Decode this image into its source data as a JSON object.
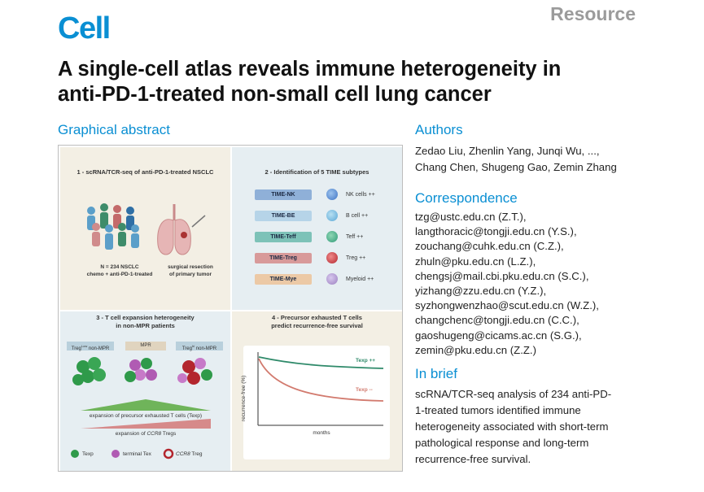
{
  "header": {
    "journal": "Cell",
    "article_type": "Resource",
    "title_line1": "A single-cell atlas reveals immune heterogeneity in",
    "title_line2": "anti-PD-1-treated non-small cell lung cancer"
  },
  "sections": {
    "graphical_abstract": "Graphical abstract",
    "authors": "Authors",
    "correspondence": "Correspondence",
    "in_brief": "In brief"
  },
  "authors": {
    "line1": "Zedao Liu, Zhenlin Yang, Junqi Wu, ...,",
    "line2": "Chang Chen, Shugeng Gao, Zemin Zhang"
  },
  "correspondence": [
    "tzg@ustc.edu.cn (Z.T.),",
    "langthoracic@tongji.edu.cn (Y.S.),",
    "zouchang@cuhk.edu.cn (C.Z.),",
    "zhuln@pku.edu.cn (L.Z.),",
    "chengsj@mail.cbi.pku.edu.cn (S.C.),",
    "yizhang@zzu.edu.cn (Y.Z.),",
    "syzhongwenzhao@scut.edu.cn (W.Z.),",
    "changchenc@tongji.edu.cn (C.C.),",
    "gaoshugeng@cicams.ac.cn (S.G.),",
    "zemin@pku.edu.cn (Z.Z.)"
  ],
  "in_brief": {
    "line1": "scRNA/TCR-seq analysis of 234 anti-PD-",
    "line2": "1-treated tumors identified immune",
    "line3": "heterogeneity associated with short-term",
    "line4": "pathological response and long-term",
    "line5": "recurrence-free survival."
  },
  "abstract": {
    "panel1": {
      "title": "1 - scRNA/TCR-seq of anti-PD-1-treated NSCLC",
      "cohort_line1": "N = 234 NSCLC",
      "cohort_line2": "chemo + anti-PD-1-treated",
      "surgery_line1": "surgical resection",
      "surgery_line2": "of primary tumor"
    },
    "panel2": {
      "title": "2 - Identification of 5 TIME subtypes",
      "subtypes": [
        {
          "label": "TIME-NK",
          "cell": "NK cells ++",
          "color": "#3f74c4"
        },
        {
          "label": "TIME-BE",
          "cell": "B cell ++",
          "color": "#5aa7d6"
        },
        {
          "label": "TIME-Teff",
          "cell": "Teff ++",
          "color": "#2f9a77"
        },
        {
          "label": "TIME-Treg",
          "cell": "Treg ++",
          "color": "#b3262e"
        },
        {
          "label": "TIME-Mye",
          "cell": "Myeloid ++",
          "color": "#9b7fc0"
        }
      ]
    },
    "panel3": {
      "title_line1": "3 - T cell expansion heterogeneity",
      "title_line2": "in non-MPR patients",
      "group_left": "Treg",
      "group_left_sup": "Low",
      "group_left_suffix": " non-MPR",
      "group_mid": "MPR",
      "group_right": "Treg",
      "group_right_sup": "hi",
      "group_right_suffix": " non-MPR",
      "wedge1": "expansion of precursor exhausted T cells (Texp)",
      "wedge2_prefix": "expansion of ",
      "wedge2_ccr": "CCR8",
      "wedge2_suffix": " Tregs",
      "legend_texp": "Texp",
      "legend_tex": "terminal Tex",
      "legend_treg_ccr": "CCR8",
      "legend_treg_suffix": " Treg"
    },
    "panel4": {
      "title_line1": "4 - Precursor exhausted T cells",
      "title_line2": "predict recurrence-free survival",
      "ylabel": "recurrence-free (%)",
      "xlabel": "months",
      "series_high": "Texp ++",
      "series_low": "Texp --"
    }
  },
  "colors": {
    "brand": "#0a8fd3",
    "texp": "#2f9a4a",
    "tex": "#b05bb3",
    "treg": "#b3262e"
  }
}
